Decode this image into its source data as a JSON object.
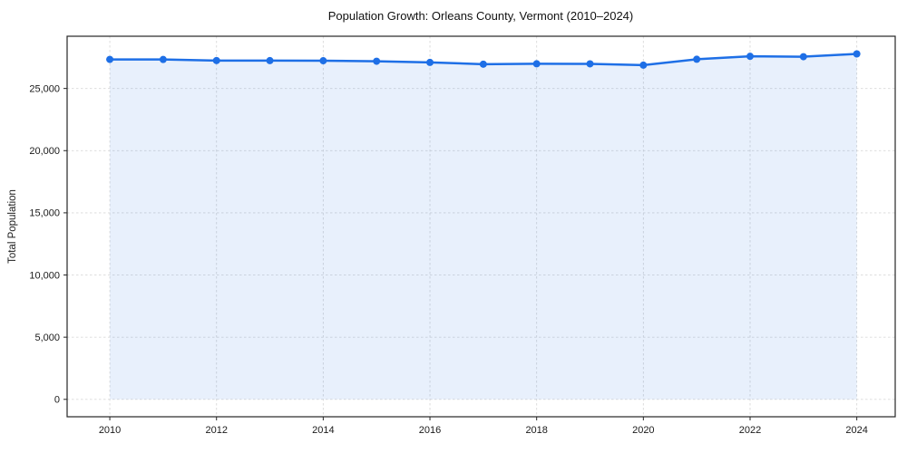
{
  "title": "Population Growth: Orleans County, Vermont (2010–2024)",
  "chart_data": {
    "type": "area",
    "title": "Population Growth: Orleans County, Vermont (2010–2024)",
    "xlabel": "",
    "ylabel": "Total Population",
    "x": [
      2010,
      2011,
      2012,
      2013,
      2014,
      2015,
      2016,
      2017,
      2018,
      2019,
      2020,
      2021,
      2022,
      2023,
      2024
    ],
    "values": [
      27335,
      27330,
      27245,
      27240,
      27230,
      27190,
      27095,
      26955,
      26985,
      26980,
      26875,
      27350,
      27585,
      27555,
      27780
    ],
    "series_name": "Total Population",
    "x_ticks": [
      2010,
      2012,
      2014,
      2016,
      2018,
      2020,
      2022,
      2024
    ],
    "y_ticks": [
      0,
      5000,
      10000,
      15000,
      20000,
      25000
    ],
    "xlim": [
      2009.2,
      2024.72
    ],
    "ylim": [
      -1400,
      29200
    ],
    "grid": true,
    "grid_style": "dashed",
    "legend": "none",
    "colors": {
      "line": "#1e6fe6",
      "marker": "#1e6fe6",
      "fill": "rgba(30,111,230,0.10)",
      "grid": "#d9d9d9",
      "spine": "#262626",
      "text": "#1a1a1a"
    },
    "baseline": 0
  }
}
